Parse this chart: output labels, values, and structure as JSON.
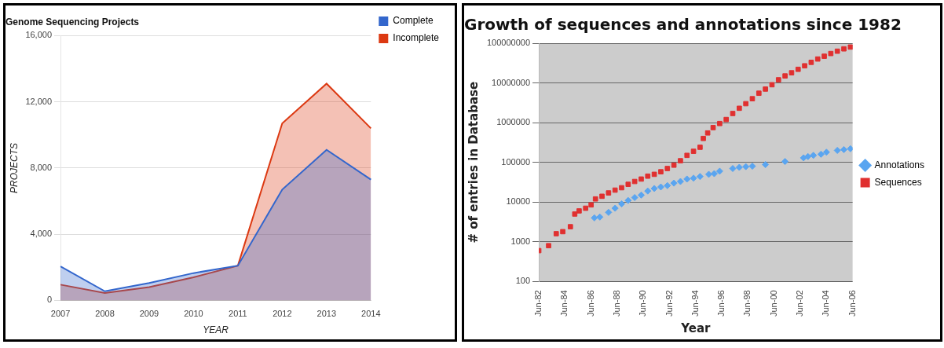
{
  "chart_data": [
    {
      "type": "area",
      "title": "Genome Sequencing Projects",
      "xlabel": "YEAR",
      "ylabel": "PROJECTS",
      "categories": [
        "2007",
        "2008",
        "2009",
        "2010",
        "2011",
        "2012",
        "2013",
        "2014"
      ],
      "series": [
        {
          "name": "Complete",
          "color": "#3366cc",
          "values": [
            2050,
            550,
            1050,
            1650,
            2100,
            6700,
            9100,
            7300
          ]
        },
        {
          "name": "Incomplete",
          "color": "#dc3912",
          "values": [
            950,
            450,
            800,
            1400,
            2100,
            10700,
            13100,
            10400
          ]
        }
      ],
      "ylim": [
        0,
        16000
      ],
      "yticks": [
        0,
        {
          "value": 4000,
          "label": "4,000"
        },
        {
          "value": 8000,
          "label": "8,000"
        },
        {
          "value": 12000,
          "label": "12,000"
        },
        {
          "value": 16000,
          "label": "16,000"
        }
      ],
      "grid": "y",
      "legend": "top right"
    },
    {
      "type": "scatter",
      "title": "Growth of sequences and annotations since 1982",
      "xlabel": "Year",
      "ylabel": "# of entries in Database",
      "log": "y",
      "series": [
        {
          "name": "Annotations",
          "color": "#5aa5f0",
          "marker": "diamond",
          "x": [
            "1986-09",
            "1987-02",
            "1987-10",
            "1988-04",
            "1988-10",
            "1989-04",
            "1989-10",
            "1990-04",
            "1990-10",
            "1991-04",
            "1991-10",
            "1992-04",
            "1992-10",
            "1993-04",
            "1993-10",
            "1994-04",
            "1994-10",
            "1995-06",
            "1995-11",
            "1996-04",
            "1997-04",
            "1997-10",
            "1998-04",
            "1998-10",
            "1999-10",
            "2001-04",
            "2002-09",
            "2003-01",
            "2003-06",
            "2004-01",
            "2004-06",
            "2005-04",
            "2005-10",
            "2006-04"
          ],
          "values": [
            4000,
            4200,
            5500,
            7000,
            9000,
            11000,
            13000,
            15000,
            19000,
            22000,
            24000,
            26000,
            30000,
            33000,
            38000,
            40000,
            44000,
            50000,
            52000,
            60000,
            70000,
            75000,
            78000,
            80000,
            88000,
            105000,
            130000,
            140000,
            150000,
            160000,
            180000,
            200000,
            210000,
            220000
          ]
        },
        {
          "name": "Sequences",
          "color": "#e03030",
          "marker": "square",
          "x": [
            "1982-06",
            "1983-03",
            "1983-10",
            "1984-04",
            "1984-11",
            "1985-03",
            "1985-07",
            "1986-01",
            "1986-06",
            "1986-10",
            "1987-04",
            "1987-10",
            "1988-04",
            "1988-10",
            "1989-04",
            "1989-10",
            "1990-04",
            "1990-10",
            "1991-04",
            "1991-10",
            "1992-04",
            "1992-10",
            "1993-04",
            "1993-10",
            "1994-04",
            "1994-10",
            "1995-01",
            "1995-05",
            "1995-10",
            "1996-04",
            "1996-10",
            "1997-04",
            "1997-10",
            "1998-04",
            "1998-10",
            "1999-04",
            "1999-10",
            "2000-04",
            "2000-10",
            "2001-04",
            "2001-10",
            "2002-04",
            "2002-10",
            "2003-04",
            "2003-10",
            "2004-04",
            "2004-10",
            "2005-04",
            "2005-10",
            "2006-04"
          ],
          "values": [
            600,
            800,
            1600,
            1800,
            2400,
            5000,
            6000,
            7000,
            8500,
            12000,
            14000,
            17000,
            20000,
            23000,
            28000,
            33000,
            38000,
            45000,
            50000,
            58000,
            70000,
            85000,
            110000,
            150000,
            190000,
            240000,
            400000,
            550000,
            750000,
            950000,
            1200000,
            1700000,
            2300000,
            3000000,
            4000000,
            5500000,
            7000000,
            9000000,
            12000000,
            15000000,
            18000000,
            22000000,
            27000000,
            33000000,
            40000000,
            47000000,
            55000000,
            63000000,
            72000000,
            80000000
          ]
        }
      ],
      "xlim": [
        "1982-06",
        "2006-06"
      ],
      "xticks": [
        {
          "value": "1982-06",
          "label": "Jun-82"
        },
        {
          "value": "1984-06",
          "label": "Jun-84"
        },
        {
          "value": "1986-06",
          "label": "Jun-86"
        },
        {
          "value": "1988-06",
          "label": "Jun-88"
        },
        {
          "value": "1990-06",
          "label": "Jun-90"
        },
        {
          "value": "1992-06",
          "label": "Jun-92"
        },
        {
          "value": "1994-06",
          "label": "Jun-94"
        },
        {
          "value": "1996-06",
          "label": "Jun-96"
        },
        {
          "value": "1998-06",
          "label": "Jun-98"
        },
        {
          "value": "2000-06",
          "label": "Jun-00"
        },
        {
          "value": "2002-06",
          "label": "Jun-02"
        },
        {
          "value": "2004-06",
          "label": "Jun-04"
        },
        {
          "value": "2006-06",
          "label": "Jun-06"
        }
      ],
      "ylim": [
        100,
        100000000
      ],
      "yticks": [
        100,
        1000,
        10000,
        100000,
        1000000,
        10000000,
        100000000
      ],
      "grid": "y",
      "legend": "right"
    }
  ]
}
